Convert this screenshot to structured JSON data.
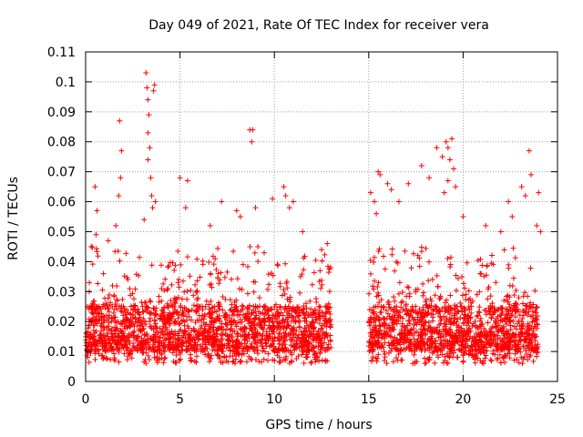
{
  "chart_data": {
    "type": "scatter",
    "title": "Day 049 of 2021, Rate Of TEC Index for receiver vera",
    "xlabel": "GPS time / hours",
    "ylabel": "ROTI / TECUs",
    "xlim": [
      0,
      25
    ],
    "ylim": [
      0,
      0.11
    ],
    "x_ticks": [
      0,
      5,
      10,
      15,
      20,
      25
    ],
    "x_tick_labels": [
      "0",
      "5",
      "10",
      "15",
      "20",
      "25"
    ],
    "y_ticks": [
      0,
      0.01,
      0.02,
      0.03,
      0.04,
      0.05,
      0.06,
      0.07,
      0.08,
      0.09,
      0.1,
      0.11
    ],
    "y_tick_labels": [
      "0",
      "0.01",
      "0.02",
      "0.03",
      "0.04",
      "0.05",
      "0.06",
      "0.07",
      "0.08",
      "0.09",
      "0.1",
      "0.11"
    ],
    "grid": true,
    "marker": "+",
    "color": "#ff0000",
    "data_gap_hours": [
      13.0,
      15.0
    ],
    "series": [
      {
        "name": "ROTI",
        "points": [
          [
            0.2,
            0.033
          ],
          [
            0.3,
            0.045
          ],
          [
            0.5,
            0.065
          ],
          [
            0.6,
            0.057
          ],
          [
            0.55,
            0.049
          ],
          [
            1.2,
            0.047
          ],
          [
            1.8,
            0.087
          ],
          [
            1.9,
            0.077
          ],
          [
            1.85,
            0.068
          ],
          [
            1.75,
            0.062
          ],
          [
            1.6,
            0.052
          ],
          [
            3.2,
            0.103
          ],
          [
            3.25,
            0.098
          ],
          [
            3.3,
            0.094
          ],
          [
            3.35,
            0.089
          ],
          [
            3.3,
            0.083
          ],
          [
            3.4,
            0.078
          ],
          [
            3.3,
            0.074
          ],
          [
            3.45,
            0.068
          ],
          [
            3.5,
            0.062
          ],
          [
            3.55,
            0.058
          ],
          [
            3.65,
            0.099
          ],
          [
            3.6,
            0.097
          ],
          [
            3.7,
            0.06
          ],
          [
            3.1,
            0.054
          ],
          [
            5.0,
            0.068
          ],
          [
            5.4,
            0.067
          ],
          [
            5.3,
            0.058
          ],
          [
            7.2,
            0.06
          ],
          [
            6.6,
            0.052
          ],
          [
            8.0,
            0.057
          ],
          [
            8.2,
            0.055
          ],
          [
            8.7,
            0.084
          ],
          [
            8.85,
            0.084
          ],
          [
            8.8,
            0.08
          ],
          [
            9.0,
            0.058
          ],
          [
            9.9,
            0.061
          ],
          [
            10.5,
            0.065
          ],
          [
            10.6,
            0.062
          ],
          [
            11.0,
            0.06
          ],
          [
            10.8,
            0.058
          ],
          [
            11.5,
            0.05
          ],
          [
            12.5,
            0.044
          ],
          [
            12.8,
            0.046
          ],
          [
            15.1,
            0.063
          ],
          [
            15.3,
            0.06
          ],
          [
            15.5,
            0.07
          ],
          [
            15.6,
            0.069
          ],
          [
            15.4,
            0.056
          ],
          [
            16.0,
            0.066
          ],
          [
            16.2,
            0.064
          ],
          [
            16.6,
            0.06
          ],
          [
            17.1,
            0.066
          ],
          [
            17.8,
            0.072
          ],
          [
            18.2,
            0.068
          ],
          [
            18.6,
            0.078
          ],
          [
            18.9,
            0.075
          ],
          [
            19.1,
            0.08
          ],
          [
            19.2,
            0.078
          ],
          [
            19.3,
            0.074
          ],
          [
            19.4,
            0.081
          ],
          [
            19.5,
            0.071
          ],
          [
            19.2,
            0.067
          ],
          [
            19.6,
            0.065
          ],
          [
            19.0,
            0.063
          ],
          [
            20.0,
            0.055
          ],
          [
            21.2,
            0.052
          ],
          [
            22.0,
            0.05
          ],
          [
            22.4,
            0.06
          ],
          [
            22.6,
            0.055
          ],
          [
            23.1,
            0.065
          ],
          [
            23.3,
            0.062
          ],
          [
            23.5,
            0.077
          ],
          [
            23.6,
            0.069
          ],
          [
            24.0,
            0.063
          ],
          [
            23.9,
            0.052
          ],
          [
            24.1,
            0.05
          ]
        ],
        "dense_band": {
          "segments": [
            [
              0.0,
              13.0
            ],
            [
              15.0,
              24.0
            ]
          ],
          "typical_min": 0.006,
          "typical_core": [
            0.01,
            0.025
          ],
          "typical_max": 0.045
        }
      }
    ]
  }
}
